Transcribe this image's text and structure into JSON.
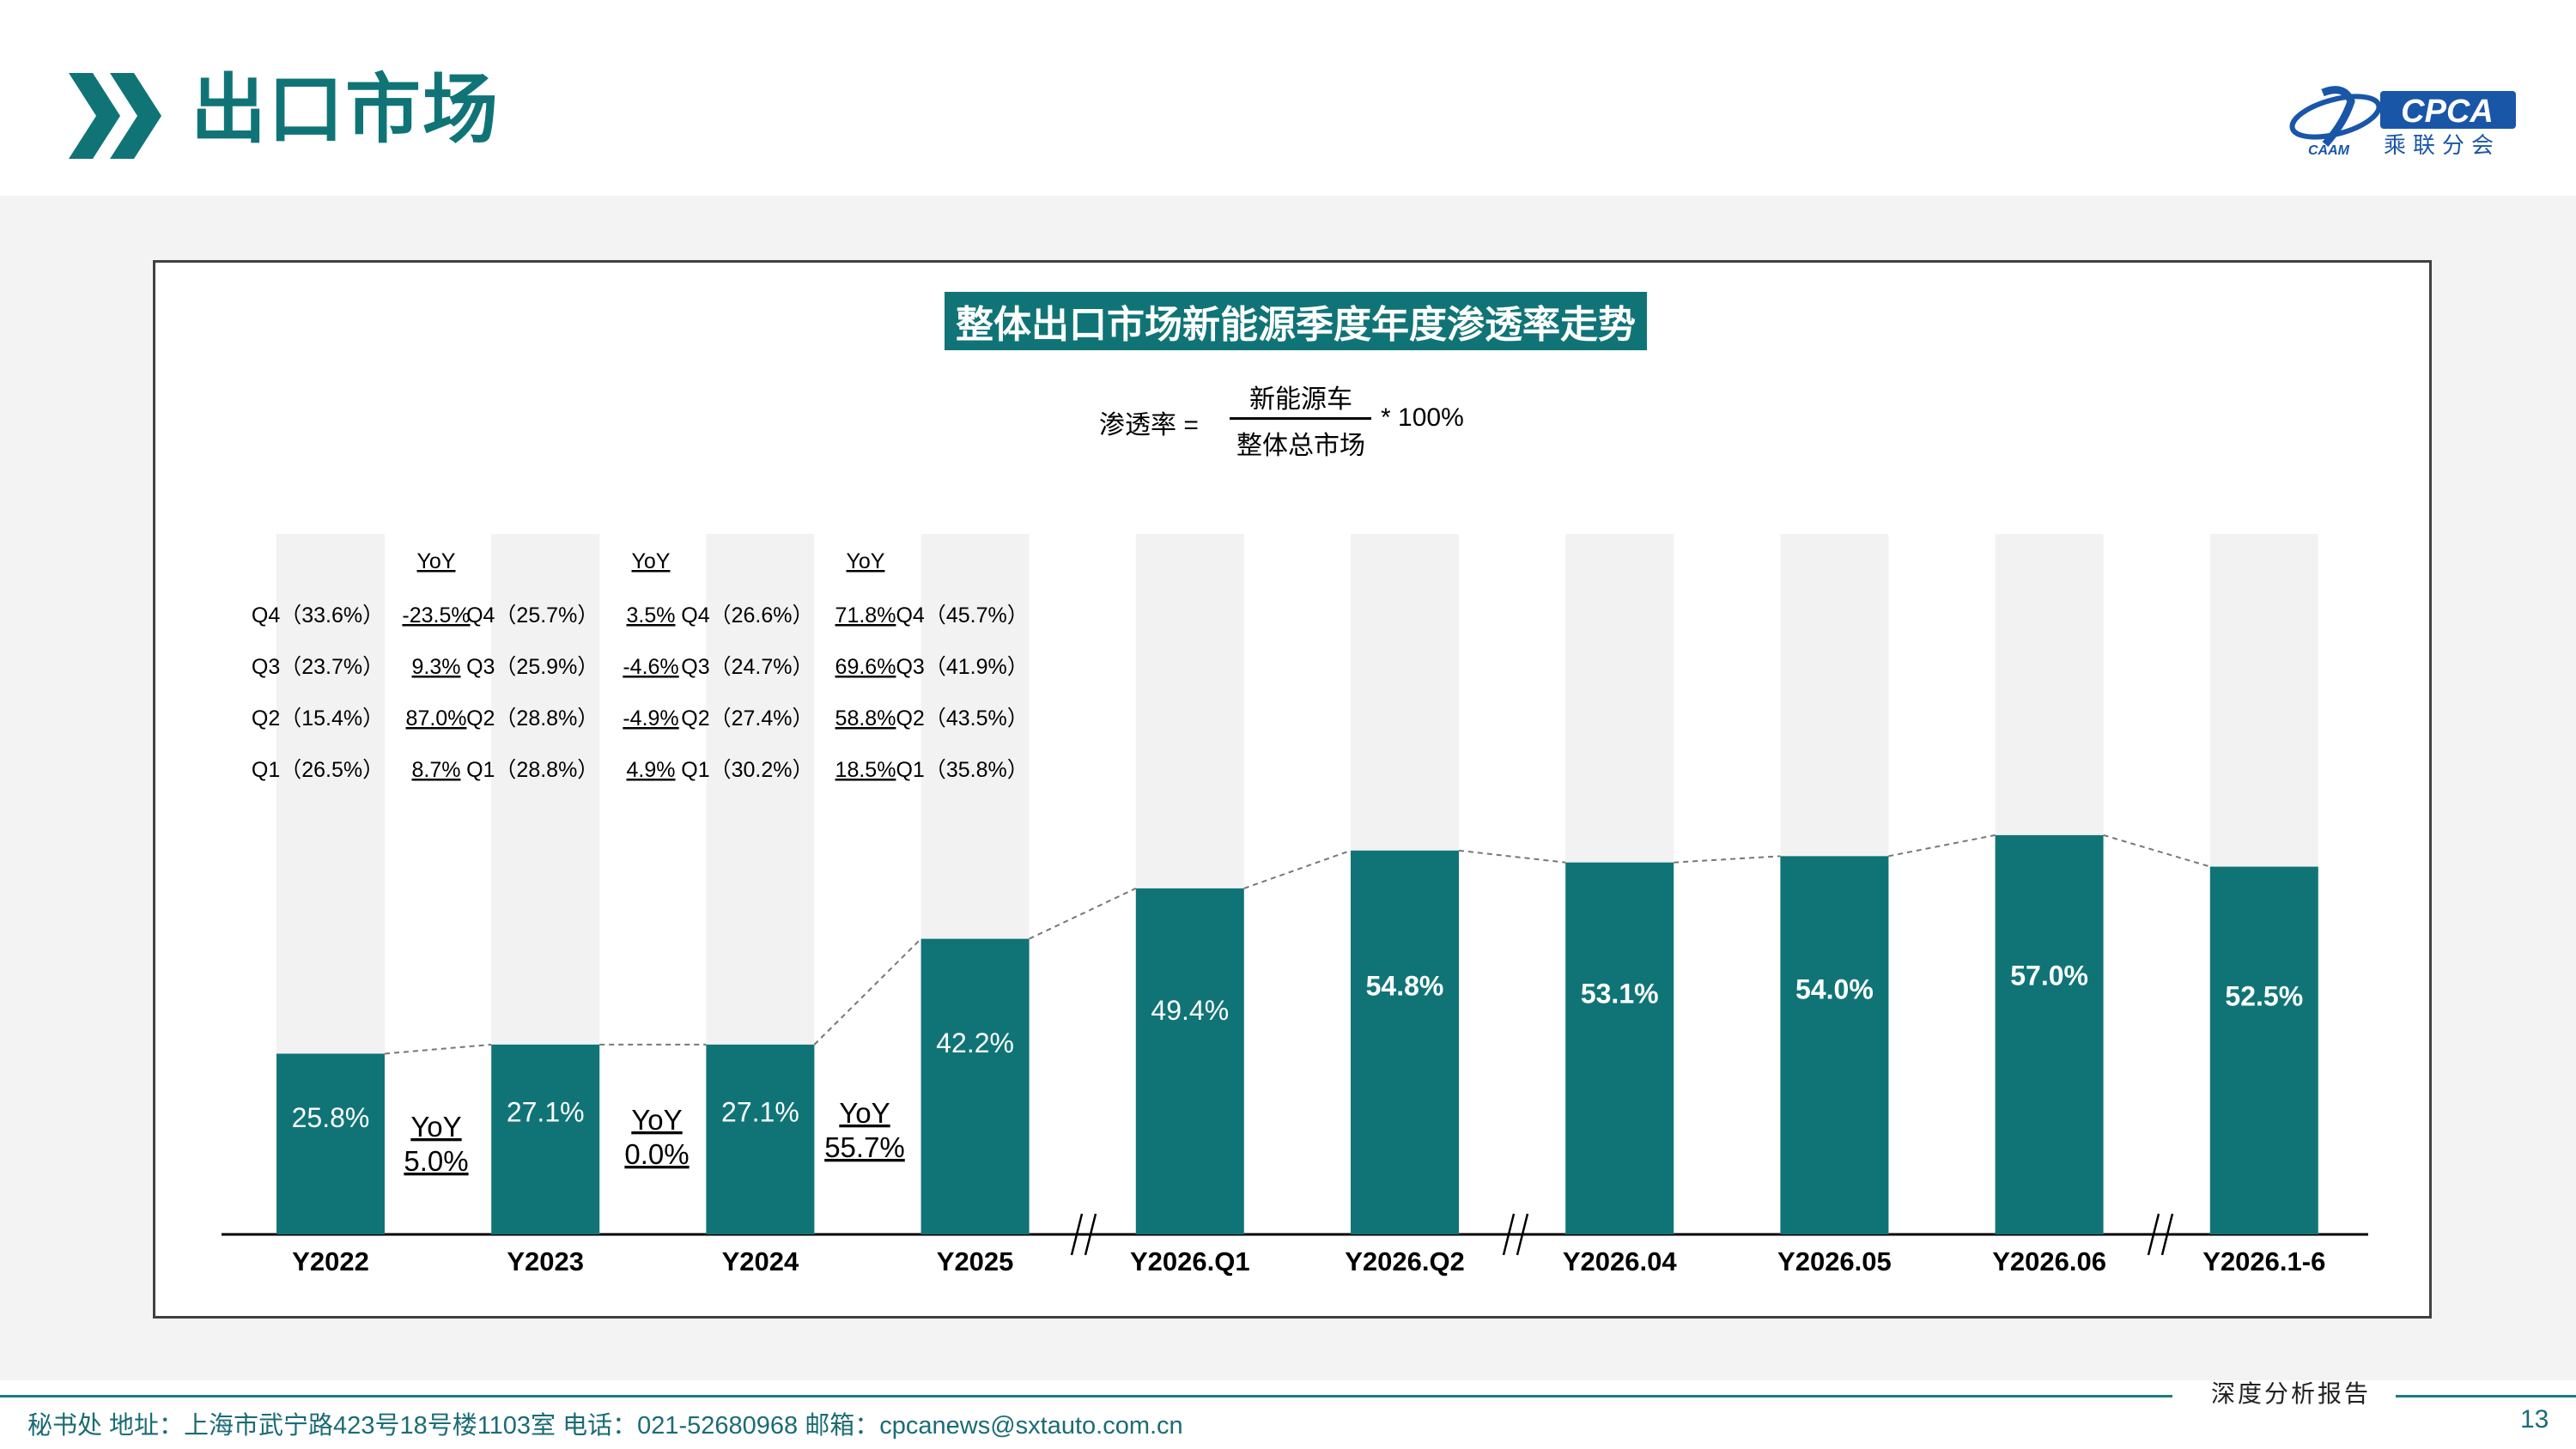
{
  "page": {
    "title": "出口市场",
    "page_number": "13",
    "footer_tag": "深度分析报告",
    "footer_text": "秘书处   地址：上海市武宁路423号18号楼1103室   电话：021-52680968    邮箱：cpcanews@sxtauto.com.cn",
    "logo_text": "CPCA",
    "logo_subtext": "乘联分会"
  },
  "colors": {
    "accent": "#107477",
    "bar_bg": "#f2f2f2",
    "footer": "#1b6c74"
  },
  "formula": {
    "lhs": "渗透率 =",
    "numerator": "新能源车",
    "denominator": "整体总市场",
    "rhs": "* 100%"
  },
  "chart_data": {
    "type": "bar",
    "title": "整体出口市场新能源季度年度渗透率走势",
    "categories": [
      "Y2022",
      "Y2023",
      "Y2024",
      "Y2025",
      "Y2026.Q1",
      "Y2026.Q2",
      "Y2026.04",
      "Y2026.05",
      "Y2026.06",
      "Y2026.1-6"
    ],
    "values": [
      25.8,
      27.1,
      27.1,
      42.2,
      49.4,
      54.8,
      53.1,
      54.0,
      57.0,
      52.5
    ],
    "value_labels": [
      "25.8%",
      "27.1%",
      "27.1%",
      "42.2%",
      "49.4%",
      "54.8%",
      "53.1%",
      "54.0%",
      "57.0%",
      "52.5%"
    ],
    "ylim": [
      0,
      100
    ],
    "axis_breaks": [
      "Y2025|Y2026.Q1",
      "Y2026.Q2|Y2026.04",
      "Y2026.06|Y2026.1-6"
    ],
    "quarterly": [
      {
        "year": "Y2022",
        "rows": [
          "Q4（33.6%）",
          "Q3（23.7%）",
          "Q2（15.4%）",
          "Q1（26.5%）"
        ]
      },
      {
        "year": "Y2023",
        "rows": [
          "Q4（25.7%）",
          "Q3（25.9%）",
          "Q2（28.8%）",
          "Q1（28.8%）"
        ]
      },
      {
        "year": "Y2024",
        "rows": [
          "Q4（26.6%）",
          "Q3（24.7%）",
          "Q2（27.4%）",
          "Q1（30.2%）"
        ]
      },
      {
        "year": "Y2025",
        "rows": [
          "Q4（45.7%）",
          "Q3（41.9%）",
          "Q2（43.5%）",
          "Q1（35.8%）"
        ]
      }
    ],
    "quarterly_yoy": [
      {
        "header": "YoY",
        "rows": [
          "-23.5%",
          "9.3%",
          "87.0%",
          "8.7%"
        ]
      },
      {
        "header": "YoY",
        "rows": [
          "3.5%",
          "-4.6%",
          "-4.9%",
          "4.9%"
        ]
      },
      {
        "header": "YoY",
        "rows": [
          "71.8%",
          "69.6%",
          "58.8%",
          "18.5%"
        ]
      }
    ],
    "annual_yoy": [
      {
        "label": "YoY",
        "value": "5.0%"
      },
      {
        "label": "YoY",
        "value": "0.0%"
      },
      {
        "label": "YoY",
        "value": "55.7%"
      }
    ]
  }
}
